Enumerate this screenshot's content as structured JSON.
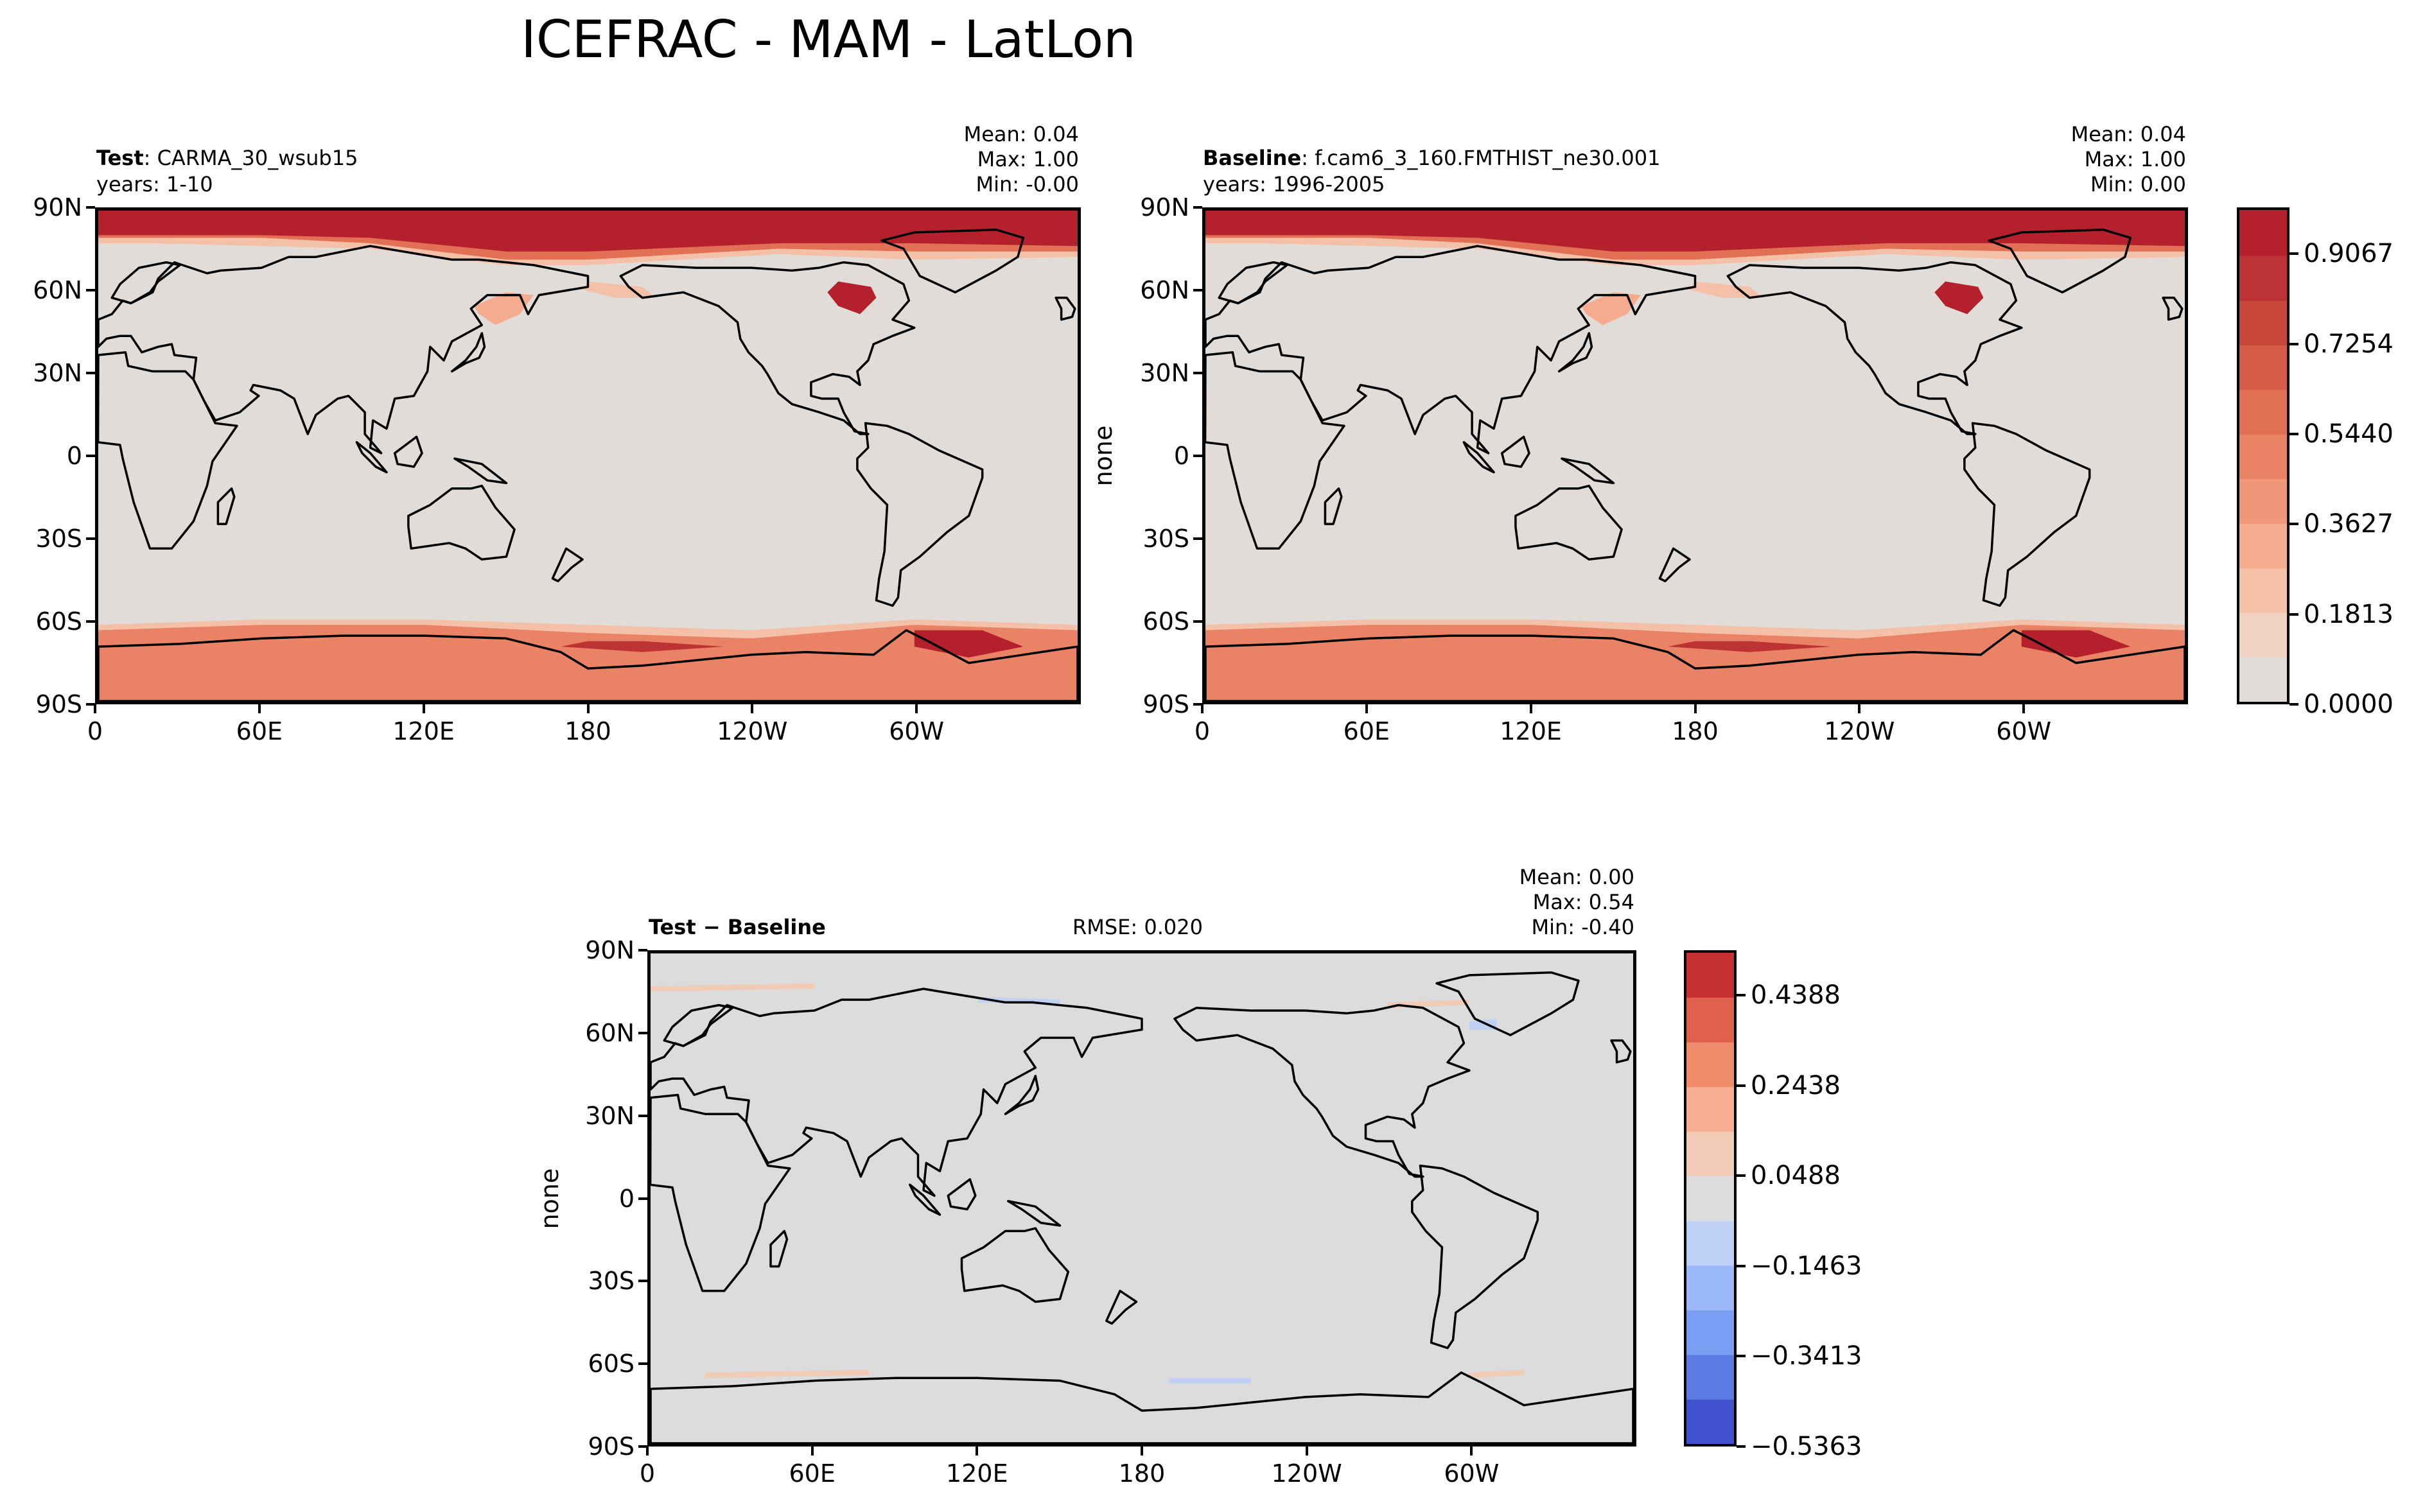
{
  "figure": {
    "suptitle": "ICEFRAC - MAM - LatLon"
  },
  "panels": {
    "test": {
      "case_label": "Test",
      "case_name": ": CARMA_30_wsub15",
      "years": "years: 1-10",
      "stats": [
        "Mean:  0.04",
        "Max:  1.00",
        "Min: -0.00"
      ],
      "ylabel": ""
    },
    "baseline": {
      "case_label": "Baseline",
      "case_name": ": f.cam6_3_160.FMTHIST_ne30.001",
      "years": "years: 1996-2005",
      "stats": [
        "Mean:  0.04",
        "Max:  1.00",
        "Min:  0.00"
      ],
      "ylabel": "none"
    },
    "diff": {
      "case_label": "Test − Baseline",
      "rmse": "RMSE: 0.020",
      "stats": [
        "Mean:  0.00",
        "Max:  0.54",
        "Min: -0.40"
      ],
      "ylabel": "none"
    }
  },
  "axes": {
    "lat_ticks": [
      "90N",
      "60N",
      "30N",
      "0",
      "30S",
      "60S",
      "90S"
    ],
    "lon_ticks": [
      "0",
      "60E",
      "120E",
      "180",
      "120W",
      "60W"
    ]
  },
  "colorbars": {
    "main": {
      "tick_labels": [
        "0.9067",
        "0.7254",
        "0.5440",
        "0.3627",
        "0.1813",
        "0.0000"
      ],
      "levels": [
        0.0,
        0.0907,
        0.1813,
        0.272,
        0.3627,
        0.4533,
        0.544,
        0.6347,
        0.7254,
        0.816,
        0.9067,
        1.0
      ],
      "colors": [
        "#e2dcd8",
        "#f0d2c2",
        "#f4c0a7",
        "#f5ab8e",
        "#f09779",
        "#ea8366",
        "#e27055",
        "#d65b47",
        "#c8483c",
        "#bd3233",
        "#b4212d"
      ]
    },
    "diff": {
      "tick_labels": [
        "0.4388",
        "0.2438",
        "0.0488",
        "−0.1463",
        "−0.3413",
        "−0.5363"
      ],
      "levels": [
        -0.5363,
        -0.4388,
        -0.3413,
        -0.2438,
        -0.1463,
        -0.0488,
        0.0488,
        0.1463,
        0.2438,
        0.3413,
        0.4388,
        0.5363
      ],
      "colors": [
        "#3f51cc",
        "#5c7be2",
        "#7a9ef4",
        "#9cbaf9",
        "#bed1f4",
        "#dcdcdc",
        "#f2cbb7",
        "#f7ad8f",
        "#ef8b6a",
        "#de604d",
        "#c63233"
      ]
    }
  },
  "chart_data": [
    {
      "type": "heatmap",
      "title": "Test : CARMA_30_wsub15",
      "subtitle": "years: 1-10",
      "xlabel": "",
      "ylabel": "",
      "x_ticks": [
        "0",
        "60E",
        "120E",
        "180",
        "120W",
        "60W"
      ],
      "y_ticks": [
        "90N",
        "60N",
        "30N",
        "0",
        "30S",
        "60S",
        "90S"
      ],
      "xlim": [
        0,
        360
      ],
      "ylim": [
        -90,
        90
      ],
      "stats": {
        "mean": 0.04,
        "max": 1.0,
        "min": -0.0
      },
      "color_range": [
        0.0,
        1.0
      ],
      "colorbar_ticks": [
        0.0,
        0.1813,
        0.3627,
        0.544,
        0.7254,
        0.9067
      ]
    },
    {
      "type": "heatmap",
      "title": "Baseline : f.cam6_3_160.FMTHIST_ne30.001",
      "subtitle": "years: 1996-2005",
      "xlabel": "",
      "ylabel": "none",
      "x_ticks": [
        "0",
        "60E",
        "120E",
        "180",
        "120W",
        "60W"
      ],
      "y_ticks": [
        "90N",
        "60N",
        "30N",
        "0",
        "30S",
        "60S",
        "90S"
      ],
      "xlim": [
        0,
        360
      ],
      "ylim": [
        -90,
        90
      ],
      "stats": {
        "mean": 0.04,
        "max": 1.0,
        "min": 0.0
      },
      "color_range": [
        0.0,
        1.0
      ],
      "colorbar_ticks": [
        0.0,
        0.1813,
        0.3627,
        0.544,
        0.7254,
        0.9067
      ]
    },
    {
      "type": "heatmap",
      "title": "Test − Baseline",
      "subtitle": "RMSE: 0.020",
      "xlabel": "",
      "ylabel": "none",
      "x_ticks": [
        "0",
        "60E",
        "120E",
        "180",
        "120W",
        "60W"
      ],
      "y_ticks": [
        "90N",
        "60N",
        "30N",
        "0",
        "30S",
        "60S",
        "90S"
      ],
      "xlim": [
        0,
        360
      ],
      "ylim": [
        -90,
        90
      ],
      "stats": {
        "mean": 0.0,
        "max": 0.54,
        "min": -0.4,
        "rmse": 0.02
      },
      "color_range": [
        -0.5363,
        0.5363
      ],
      "colorbar_ticks": [
        -0.5363,
        -0.3413,
        -0.1463,
        0.0488,
        0.2438,
        0.4388
      ]
    }
  ]
}
